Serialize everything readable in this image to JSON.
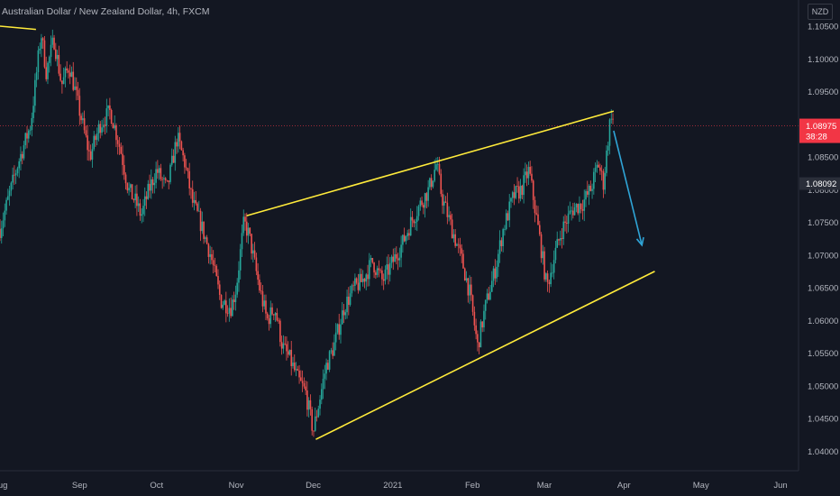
{
  "header": {
    "title": "Australian Dollar / New Zealand Dollar, 4h, FXCM",
    "currency": "NZD"
  },
  "price_tag": {
    "value": "1.08975",
    "countdown": "38:28",
    "color": "#f23645"
  },
  "ref_tag": {
    "value": "1.08092",
    "color": "#2a2e39"
  },
  "chart_data": {
    "type": "candlestick",
    "xlabel": "",
    "ylabel": "",
    "ylim": [
      1.037,
      1.109
    ],
    "y_ticks": [
      "1.04000",
      "1.04500",
      "1.05000",
      "1.05500",
      "1.06000",
      "1.06500",
      "1.07000",
      "1.07500",
      "1.08000",
      "1.08500",
      "1.09000",
      "1.09500",
      "1.10000",
      "1.10500"
    ],
    "x_ticks": [
      "Aug",
      "Sep",
      "Oct",
      "Nov",
      "Dec",
      "2021",
      "Feb",
      "Mar",
      "Apr",
      "May",
      "Jun"
    ],
    "x_range": [
      "2020-08-01",
      "2021-06-08"
    ],
    "grid": false,
    "colors": {
      "up": "#26a69a",
      "down": "#ef5350",
      "trendline": "#ffeb3b",
      "projection": "#2fa4d6"
    },
    "price_path": [
      [
        "2020-08-01",
        1.074
      ],
      [
        "2020-08-08",
        1.084
      ],
      [
        "2020-08-13",
        1.09
      ],
      [
        "2020-08-17",
        1.104
      ],
      [
        "2020-08-19",
        1.098
      ],
      [
        "2020-08-22",
        1.103
      ],
      [
        "2020-08-25",
        1.096
      ],
      [
        "2020-08-28",
        1.099
      ],
      [
        "2020-09-01",
        1.092
      ],
      [
        "2020-09-05",
        1.085
      ],
      [
        "2020-09-09",
        1.09
      ],
      [
        "2020-09-13",
        1.092
      ],
      [
        "2020-09-17",
        1.086
      ],
      [
        "2020-09-20",
        1.08
      ],
      [
        "2020-09-23",
        1.078
      ],
      [
        "2020-09-25",
        1.076
      ],
      [
        "2020-09-28",
        1.08
      ],
      [
        "2020-10-01",
        1.083
      ],
      [
        "2020-10-05",
        1.08
      ],
      [
        "2020-10-09",
        1.088
      ],
      [
        "2020-10-12",
        1.084
      ],
      [
        "2020-10-15",
        1.078
      ],
      [
        "2020-10-18",
        1.075
      ],
      [
        "2020-10-22",
        1.07
      ],
      [
        "2020-10-26",
        1.063
      ],
      [
        "2020-10-30",
        1.062
      ],
      [
        "2020-11-01",
        1.065
      ],
      [
        "2020-11-04",
        1.075
      ],
      [
        "2020-11-06",
        1.073
      ],
      [
        "2020-11-10",
        1.065
      ],
      [
        "2020-11-13",
        1.06
      ],
      [
        "2020-11-16",
        1.062
      ],
      [
        "2020-11-19",
        1.056
      ],
      [
        "2020-11-22",
        1.054
      ],
      [
        "2020-11-25",
        1.051
      ],
      [
        "2020-11-28",
        1.049
      ],
      [
        "2020-12-01",
        1.043
      ],
      [
        "2020-12-03",
        1.047
      ],
      [
        "2020-12-06",
        1.053
      ],
      [
        "2020-12-09",
        1.056
      ],
      [
        "2020-12-13",
        1.062
      ],
      [
        "2020-12-17",
        1.065
      ],
      [
        "2020-12-20",
        1.066
      ],
      [
        "2020-12-24",
        1.069
      ],
      [
        "2020-12-28",
        1.066
      ],
      [
        "2021-01-01",
        1.069
      ],
      [
        "2021-01-05",
        1.072
      ],
      [
        "2021-01-08",
        1.075
      ],
      [
        "2021-01-12",
        1.078
      ],
      [
        "2021-01-15",
        1.08
      ],
      [
        "2021-01-18",
        1.084
      ],
      [
        "2021-01-20",
        1.079
      ],
      [
        "2021-01-24",
        1.074
      ],
      [
        "2021-01-28",
        1.069
      ],
      [
        "2021-01-31",
        1.064
      ],
      [
        "2021-02-03",
        1.056
      ],
      [
        "2021-02-06",
        1.062
      ],
      [
        "2021-02-10",
        1.068
      ],
      [
        "2021-02-13",
        1.074
      ],
      [
        "2021-02-17",
        1.079
      ],
      [
        "2021-02-20",
        1.08
      ],
      [
        "2021-02-23",
        1.083
      ],
      [
        "2021-02-25",
        1.078
      ],
      [
        "2021-02-27",
        1.073
      ],
      [
        "2021-03-02",
        1.065
      ],
      [
        "2021-03-05",
        1.07
      ],
      [
        "2021-03-08",
        1.074
      ],
      [
        "2021-03-12",
        1.077
      ],
      [
        "2021-03-16",
        1.078
      ],
      [
        "2021-03-19",
        1.08
      ],
      [
        "2021-03-22",
        1.084
      ],
      [
        "2021-03-24",
        1.081
      ],
      [
        "2021-03-27",
        1.092
      ],
      [
        "2021-03-28",
        1.0898
      ]
    ],
    "trendlines": [
      {
        "name": "aug-high-segment",
        "from": [
          "2020-08-01",
          1.105
        ],
        "to": [
          "2020-08-15",
          1.1045
        ]
      },
      {
        "name": "upper-channel",
        "from": [
          "2020-11-05",
          1.076
        ],
        "to": [
          "2021-03-28",
          1.092
        ]
      },
      {
        "name": "lower-channel",
        "from": [
          "2020-12-02",
          1.0418
        ],
        "to": [
          "2021-04-13",
          1.0675
        ]
      }
    ],
    "projection_arrow": {
      "from": [
        "2021-03-28",
        1.089
      ],
      "to": [
        "2021-04-08",
        1.0715
      ]
    },
    "current_price": 1.08975
  }
}
